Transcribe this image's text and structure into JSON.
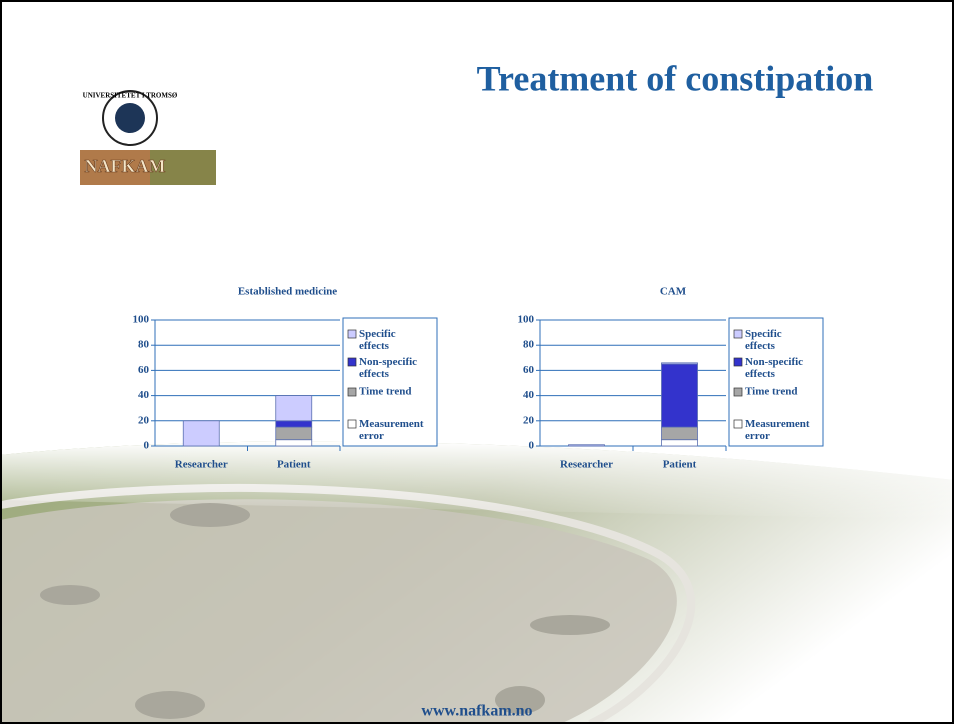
{
  "slide_title": "Treatment of constipation",
  "logo": {
    "university": "UNIVERSITETET I TROMSØ",
    "name": "NAFKAM"
  },
  "footer": "www.nafkam.no",
  "chart_data": [
    {
      "type": "bar",
      "stacked": true,
      "title": "Established medicine",
      "categories": [
        "Researcher",
        "Patient"
      ],
      "series": [
        {
          "name": "Measurement error",
          "color": "#ffffff",
          "values": [
            0,
            5
          ]
        },
        {
          "name": "Time trend",
          "color": "#a6a6a6",
          "values": [
            0,
            10
          ]
        },
        {
          "name": "Non-specific effects",
          "color": "#3333cc",
          "values": [
            0,
            5
          ]
        },
        {
          "name": "Specific effects",
          "color": "#ccccff",
          "values": [
            20,
            20
          ]
        }
      ],
      "ylim": [
        0,
        100
      ],
      "yticks": [
        0,
        20,
        40,
        60,
        80,
        100
      ],
      "grid": true,
      "legend": "right"
    },
    {
      "type": "bar",
      "stacked": true,
      "title": "CAM",
      "categories": [
        "Researcher",
        "Patient"
      ],
      "series": [
        {
          "name": "Measurement error",
          "color": "#ffffff",
          "values": [
            0,
            5
          ]
        },
        {
          "name": "Time trend",
          "color": "#a6a6a6",
          "values": [
            0,
            10
          ]
        },
        {
          "name": "Non-specific effects",
          "color": "#3333cc",
          "values": [
            0,
            50
          ]
        },
        {
          "name": "Specific effects",
          "color": "#ccccff",
          "values": [
            1,
            1
          ]
        }
      ],
      "ylim": [
        0,
        100
      ],
      "yticks": [
        0,
        20,
        40,
        60,
        80,
        100
      ],
      "grid": true,
      "legend": "right"
    }
  ]
}
